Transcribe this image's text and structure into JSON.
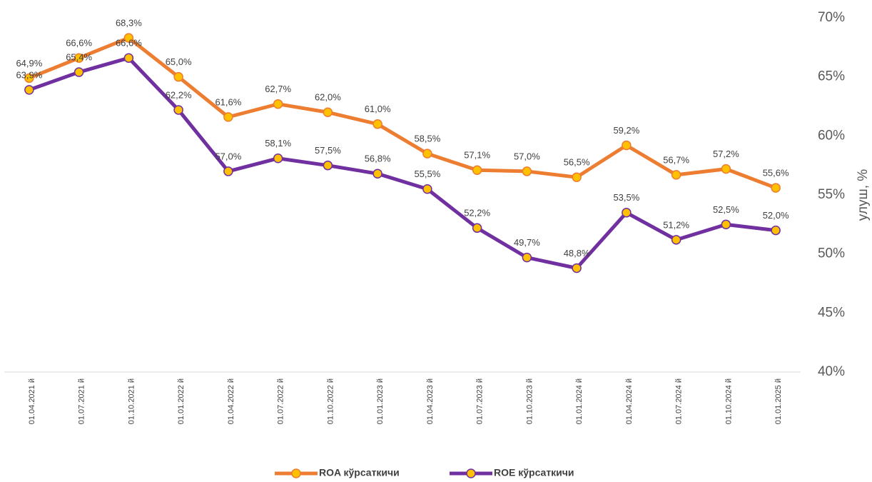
{
  "chart_data": {
    "type": "line",
    "categories": [
      "01.04.2021 й",
      "01.07.2021 й",
      "01.10.2021 й",
      "01.01.2022 й",
      "01.04.2022 й",
      "01.07.2022 й",
      "01.10.2022 й",
      "01.01.2023 й",
      "01.04.2023 й",
      "01.07.2023 й",
      "01.10.2023 й",
      "01.01.2024 й",
      "01.04.2024 й",
      "01.07.2024 й",
      "01.10.2024 й",
      "01.01.2025 й"
    ],
    "series": [
      {
        "name": "ROA кўрсаткичи",
        "color": "#ed7d31",
        "marker_color": "#ffc000",
        "values": [
          64.9,
          66.6,
          68.3,
          65.0,
          61.6,
          62.7,
          62.0,
          61.0,
          58.5,
          57.1,
          57.0,
          56.5,
          59.2,
          56.7,
          57.2,
          55.6
        ],
        "value_labels": [
          "64,9%",
          "66,6%",
          "68,3%",
          "65,0%",
          "61,6%",
          "62,7%",
          "62,0%",
          "61,0%",
          "58,5%",
          "57,1%",
          "57,0%",
          "56,5%",
          "59,2%",
          "56,7%",
          "57,2%",
          "55,6%"
        ]
      },
      {
        "name": "ROE кўрсаткичи",
        "color": "#7030a0",
        "marker_color": "#ffc000",
        "values": [
          63.9,
          65.4,
          66.6,
          62.2,
          57.0,
          58.1,
          57.5,
          56.8,
          55.5,
          52.2,
          49.7,
          48.8,
          53.5,
          51.2,
          52.5,
          52.0
        ],
        "value_labels": [
          "63,9%",
          "65,4%",
          "66,6%",
          "62,2%",
          "57,0%",
          "58,1%",
          "57,5%",
          "56,8%",
          "55,5%",
          "52,2%",
          "49,7%",
          "48,8%",
          "53,5%",
          "51,2%",
          "52,5%",
          "52,0%"
        ]
      }
    ],
    "y_label": "улуш, %",
    "ylim": [
      40,
      70
    ],
    "yticks": [
      {
        "value": 40,
        "label": "40%"
      },
      {
        "value": 45,
        "label": "45%"
      },
      {
        "value": 50,
        "label": "50%"
      },
      {
        "value": 55,
        "label": "55%"
      },
      {
        "value": 60,
        "label": "60%"
      },
      {
        "value": 65,
        "label": "65%"
      },
      {
        "value": 70,
        "label": "70%"
      }
    ],
    "legend": "bottom"
  }
}
